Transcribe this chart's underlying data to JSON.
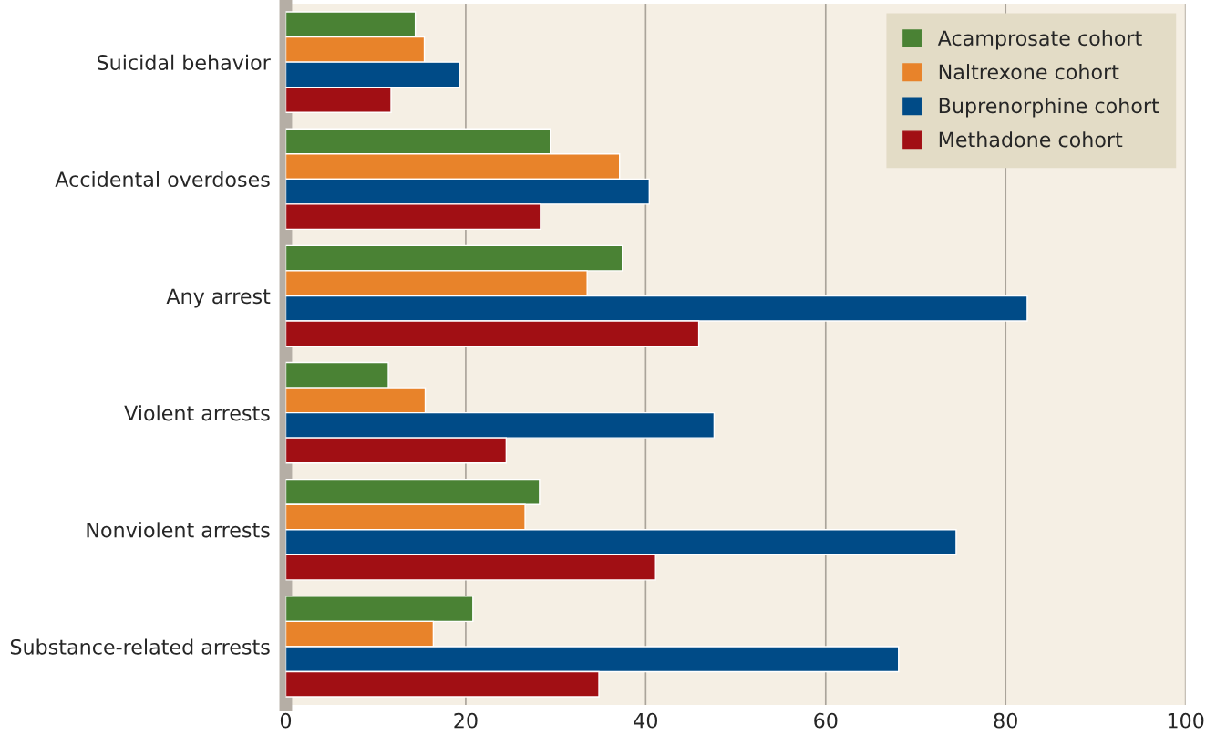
{
  "chart_data": {
    "type": "bar",
    "orientation": "horizontal",
    "categories": [
      "Suicidal behavior",
      "Accidental overdoses",
      "Any arrest",
      "Violent arrests",
      "Nonviolent arrests",
      "Substance-related arrests"
    ],
    "series": [
      {
        "name": "Acamprosate cohort",
        "color": "#4a8234",
        "values": [
          14.4,
          29.4,
          37.4,
          11.4,
          28.2,
          20.8
        ]
      },
      {
        "name": "Naltrexone cohort",
        "color": "#e8832a",
        "values": [
          15.4,
          37.1,
          33.5,
          15.5,
          26.6,
          16.4
        ]
      },
      {
        "name": "Buprenorphine cohort",
        "color": "#004b87",
        "values": [
          19.3,
          40.4,
          82.4,
          47.6,
          74.5,
          68.1
        ]
      },
      {
        "name": "Methadone cohort",
        "color": "#a10f14",
        "values": [
          11.7,
          28.3,
          45.9,
          24.5,
          41.1,
          34.8
        ]
      }
    ],
    "xlim": [
      0,
      100
    ],
    "xticks": [
      0,
      20,
      40,
      60,
      80,
      100
    ],
    "grid": "x",
    "legend": "top right"
  }
}
